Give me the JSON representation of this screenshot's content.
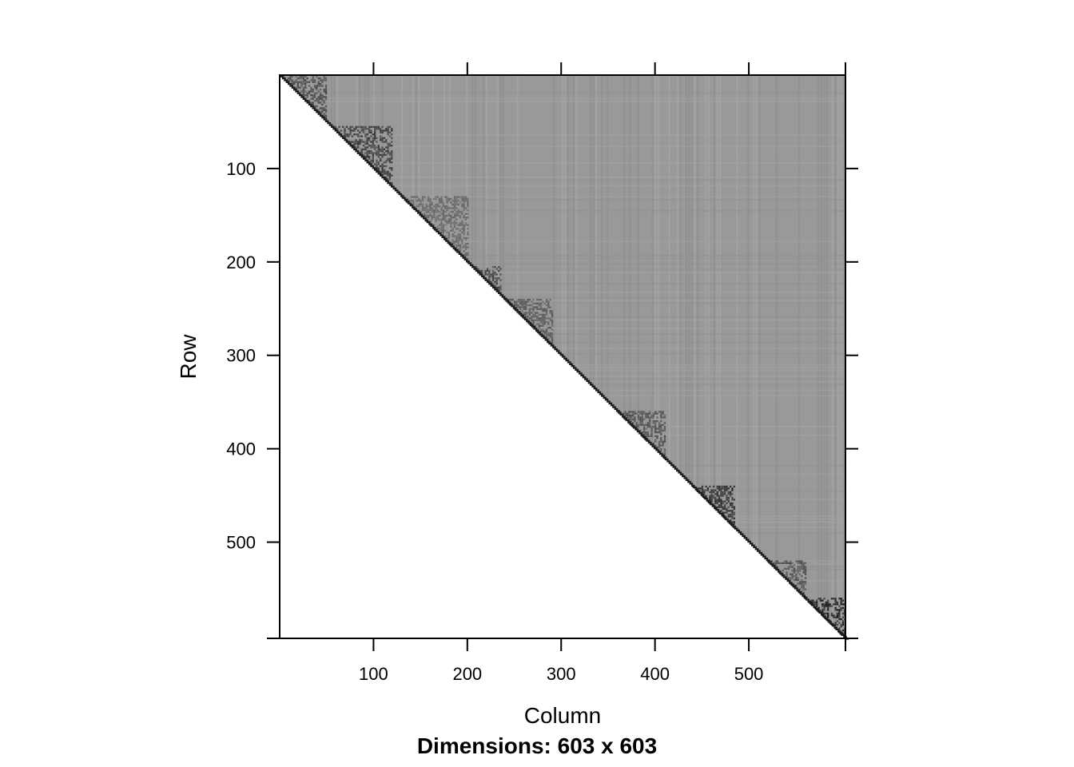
{
  "chart_data": {
    "type": "heatmap",
    "matrix_shape": "upper-triangular",
    "n_rows": 603,
    "n_cols": 603,
    "xlabel": "Column",
    "ylabel": "Row",
    "subtitle": "Dimensions: 603 x 603",
    "xlim": [
      1,
      603
    ],
    "ylim": [
      1,
      603
    ],
    "y_axis_direction": "top-to-bottom",
    "x_ticks": [
      100,
      200,
      300,
      400,
      500
    ],
    "x_tick_labels": [
      "100",
      "200",
      "300",
      "400",
      "500"
    ],
    "y_ticks": [
      100,
      200,
      300,
      400,
      500
    ],
    "y_tick_labels": [
      "100",
      "200",
      "300",
      "400",
      "500"
    ],
    "colors": {
      "fill_low": "#999999",
      "fill_high": "#1a1a1a",
      "empty": "#ffffff",
      "axis": "#000000"
    },
    "dense_blocks": [
      {
        "rows": [
          1,
          50
        ],
        "cols": [
          1,
          50
        ],
        "level": 0.55
      },
      {
        "rows": [
          55,
          120
        ],
        "cols": [
          55,
          120
        ],
        "level": 0.65
      },
      {
        "rows": [
          130,
          200
        ],
        "cols": [
          130,
          200
        ],
        "level": 0.35
      },
      {
        "rows": [
          205,
          235
        ],
        "cols": [
          205,
          235
        ],
        "level": 0.6
      },
      {
        "rows": [
          240,
          290
        ],
        "cols": [
          240,
          290
        ],
        "level": 0.45
      },
      {
        "rows": [
          360,
          410
        ],
        "cols": [
          360,
          410
        ],
        "level": 0.5
      },
      {
        "rows": [
          440,
          485
        ],
        "cols": [
          440,
          485
        ],
        "level": 0.75
      },
      {
        "rows": [
          520,
          560
        ],
        "cols": [
          520,
          560
        ],
        "level": 0.5
      },
      {
        "rows": [
          560,
          603
        ],
        "cols": [
          560,
          603
        ],
        "level": 0.85
      }
    ],
    "grid": false,
    "legend": "none"
  }
}
